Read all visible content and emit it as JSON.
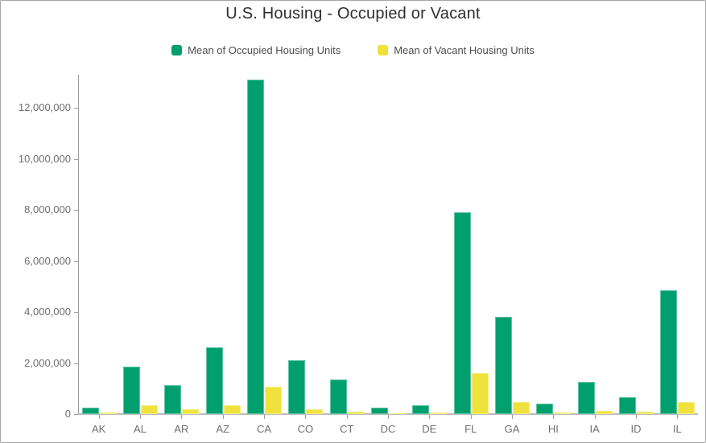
{
  "header": {
    "title": "U.S. Housing - Occupied or Vacant"
  },
  "legend": {
    "items": [
      {
        "label": "Mean of Occupied Housing Units",
        "color": "#00a06e",
        "series_key": "occupied"
      },
      {
        "label": "Mean of Vacant Housing Units",
        "color": "#efe23d",
        "series_key": "vacant"
      }
    ]
  },
  "colors": {
    "occupied": "#00a06e",
    "vacant": "#efe23d",
    "title_text": "#2f2f2f",
    "legend_text": "#4e4e4e",
    "axis_text": "#6e6e6e",
    "axis_line": "#9d9d9d",
    "baseline": "#bcbcbc",
    "background": "#ffffff",
    "border": "#a6a6a6"
  },
  "chart_data": {
    "type": "bar",
    "title": "U.S. Housing - Occupied or Vacant",
    "xlabel": "",
    "ylabel": "",
    "grid": false,
    "legend_position": "top-center",
    "categories": [
      "AK",
      "AL",
      "AR",
      "AZ",
      "CA",
      "CO",
      "CT",
      "DC",
      "DE",
      "FL",
      "GA",
      "HI",
      "IA",
      "ID",
      "IL"
    ],
    "series": [
      {
        "name": "Mean of Occupied Housing Units",
        "color": "#00a06e",
        "values": [
          250000,
          1850000,
          1120000,
          2600000,
          13100000,
          2100000,
          1350000,
          260000,
          350000,
          7900000,
          3800000,
          420000,
          1250000,
          650000,
          4850000
        ]
      },
      {
        "name": "Mean of Vacant Housing Units",
        "color": "#efe23d",
        "values": [
          70000,
          350000,
          180000,
          360000,
          1070000,
          180000,
          100000,
          30000,
          70000,
          1610000,
          460000,
          70000,
          130000,
          90000,
          460000
        ]
      }
    ],
    "ylim": [
      0,
      13200000
    ],
    "y_ticks": [
      {
        "value": 0,
        "label": "0"
      },
      {
        "value": 2000000,
        "label": "2,000,000"
      },
      {
        "value": 4000000,
        "label": "4,000,000"
      },
      {
        "value": 6000000,
        "label": "6,000,000"
      },
      {
        "value": 8000000,
        "label": "8,000,000"
      },
      {
        "value": 10000000,
        "label": "10,000,000"
      },
      {
        "value": 12000000,
        "label": "12,000,000"
      }
    ]
  }
}
